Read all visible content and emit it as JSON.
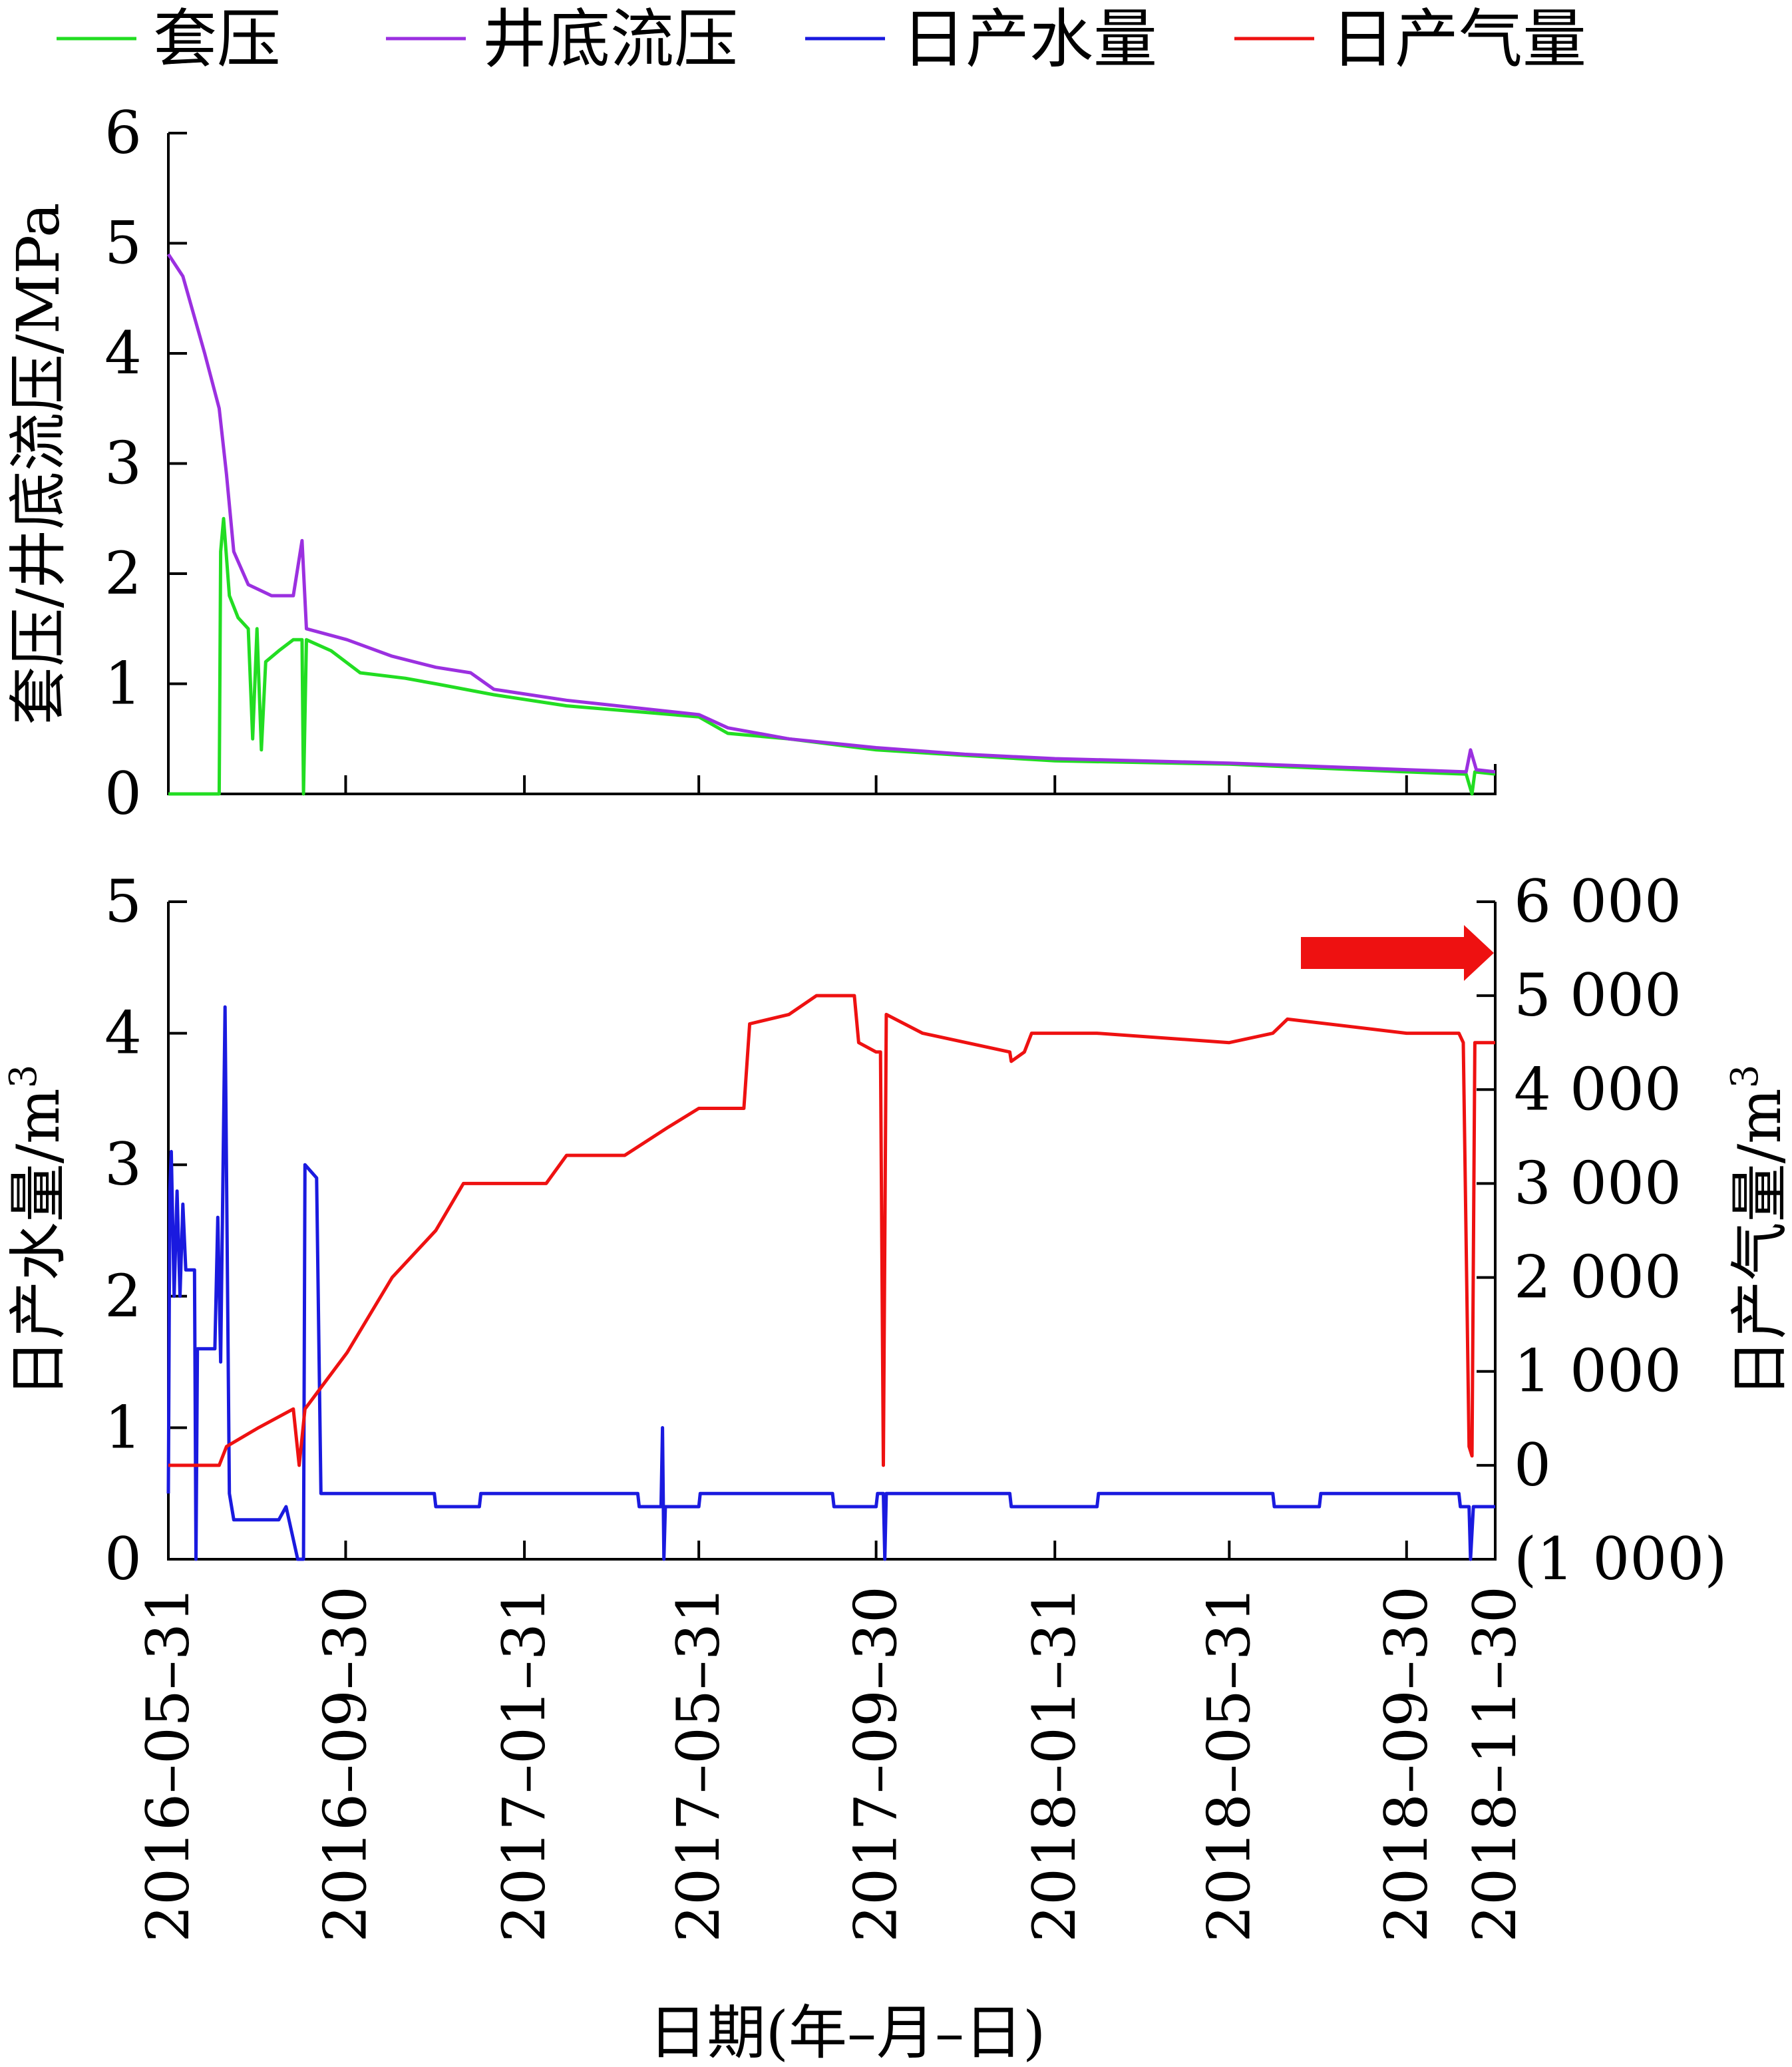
{
  "legend": [
    {
      "label": "套压",
      "color": "#22dd22"
    },
    {
      "label": "井底流压",
      "color": "#9b30e0"
    },
    {
      "label": "日产水量",
      "color": "#1a1adf"
    },
    {
      "label": "日产气量",
      "color": "#ee1111"
    }
  ],
  "chart_data": [
    {
      "type": "line",
      "panel": "top",
      "ylabel": "套压/井底流压/MPa",
      "ylim": [
        0,
        6
      ],
      "yticks": [
        "0",
        "1",
        "2",
        "3",
        "4",
        "5",
        "6"
      ],
      "xlim": [
        "2016-05-31",
        "2018-11-30"
      ],
      "series": [
        {
          "name": "套压",
          "color": "#22dd22",
          "points": [
            [
              "2016-05-31",
              0.0
            ],
            [
              "2016-07-05",
              0.0
            ],
            [
              "2016-07-06",
              2.2
            ],
            [
              "2016-07-08",
              2.5
            ],
            [
              "2016-07-12",
              1.8
            ],
            [
              "2016-07-18",
              1.6
            ],
            [
              "2016-07-25",
              1.5
            ],
            [
              "2016-07-28",
              0.5
            ],
            [
              "2016-07-31",
              1.5
            ],
            [
              "2016-08-03",
              0.4
            ],
            [
              "2016-08-06",
              1.2
            ],
            [
              "2016-08-15",
              1.3
            ],
            [
              "2016-08-25",
              1.4
            ],
            [
              "2016-08-31",
              1.4
            ],
            [
              "2016-09-01",
              0.0
            ],
            [
              "2016-09-03",
              1.4
            ],
            [
              "2016-09-20",
              1.3
            ],
            [
              "2016-10-10",
              1.1
            ],
            [
              "2016-11-10",
              1.05
            ],
            [
              "2016-12-01",
              1.0
            ],
            [
              "2017-01-10",
              0.9
            ],
            [
              "2017-03-01",
              0.8
            ],
            [
              "2017-05-31",
              0.7
            ],
            [
              "2017-06-20",
              0.55
            ],
            [
              "2017-08-01",
              0.5
            ],
            [
              "2017-09-30",
              0.4
            ],
            [
              "2017-11-30",
              0.35
            ],
            [
              "2018-01-31",
              0.3
            ],
            [
              "2018-05-31",
              0.27
            ],
            [
              "2018-09-30",
              0.2
            ],
            [
              "2018-11-10",
              0.18
            ],
            [
              "2018-11-14",
              0.0
            ],
            [
              "2018-11-16",
              0.2
            ],
            [
              "2018-11-30",
              0.18
            ]
          ]
        },
        {
          "name": "井底流压",
          "color": "#9b30e0",
          "points": [
            [
              "2016-05-31",
              4.9
            ],
            [
              "2016-06-10",
              4.7
            ],
            [
              "2016-06-25",
              4.0
            ],
            [
              "2016-07-05",
              3.5
            ],
            [
              "2016-07-10",
              2.9
            ],
            [
              "2016-07-15",
              2.2
            ],
            [
              "2016-07-25",
              1.9
            ],
            [
              "2016-08-10",
              1.8
            ],
            [
              "2016-08-25",
              1.8
            ],
            [
              "2016-08-31",
              2.3
            ],
            [
              "2016-09-03",
              1.5
            ],
            [
              "2016-10-01",
              1.4
            ],
            [
              "2016-11-01",
              1.25
            ],
            [
              "2016-12-01",
              1.15
            ],
            [
              "2016-12-25",
              1.1
            ],
            [
              "2017-01-10",
              0.95
            ],
            [
              "2017-03-01",
              0.85
            ],
            [
              "2017-05-31",
              0.72
            ],
            [
              "2017-06-20",
              0.6
            ],
            [
              "2017-08-01",
              0.5
            ],
            [
              "2017-09-30",
              0.42
            ],
            [
              "2017-11-30",
              0.36
            ],
            [
              "2018-01-31",
              0.32
            ],
            [
              "2018-05-31",
              0.28
            ],
            [
              "2018-09-30",
              0.22
            ],
            [
              "2018-11-10",
              0.2
            ],
            [
              "2018-11-13",
              0.4
            ],
            [
              "2018-11-17",
              0.22
            ],
            [
              "2018-11-30",
              0.2
            ]
          ]
        }
      ]
    },
    {
      "type": "line",
      "panel": "bottom",
      "ylabel": "日产水量/m",
      "ylabel_sup": "3",
      "ylim": [
        0,
        5
      ],
      "yticks": [
        "0",
        "1",
        "2",
        "3",
        "4",
        "5"
      ],
      "y2label": "日产气量/m",
      "y2label_sup": "3",
      "y2lim": [
        -1000,
        6000
      ],
      "y2ticks": [
        "(1 000)",
        "0",
        "1 000",
        "2 000",
        "3 000",
        "4 000",
        "5 000",
        "6 000"
      ],
      "xlabel": "日期(年–月–日)",
      "xlim": [
        "2016-05-31",
        "2018-11-30"
      ],
      "xticks": [
        "2016–05–31",
        "2016–09–30",
        "2017–01–31",
        "2017–05–31",
        "2017–09–30",
        "2018–01–31",
        "2018–05–31",
        "2018–09–30",
        "2018–11–30"
      ],
      "series": [
        {
          "name": "日产水量",
          "color": "#1a1adf",
          "axis": "left",
          "points": [
            [
              "2016-05-31",
              0.5
            ],
            [
              "2016-06-01",
              2.8
            ],
            [
              "2016-06-02",
              3.1
            ],
            [
              "2016-06-04",
              2.0
            ],
            [
              "2016-06-06",
              2.8
            ],
            [
              "2016-06-08",
              2.0
            ],
            [
              "2016-06-10",
              2.7
            ],
            [
              "2016-06-12",
              2.2
            ],
            [
              "2016-06-18",
              2.2
            ],
            [
              "2016-06-19",
              0.0
            ],
            [
              "2016-06-20",
              1.6
            ],
            [
              "2016-07-02",
              1.6
            ],
            [
              "2016-07-04",
              2.6
            ],
            [
              "2016-07-06",
              1.5
            ],
            [
              "2016-07-09",
              4.2
            ],
            [
              "2016-07-12",
              0.5
            ],
            [
              "2016-07-15",
              0.3
            ],
            [
              "2016-08-15",
              0.3
            ],
            [
              "2016-08-20",
              0.4
            ],
            [
              "2016-08-28",
              0.0
            ],
            [
              "2016-09-01",
              0.0
            ],
            [
              "2016-09-02",
              3.0
            ],
            [
              "2016-09-10",
              2.9
            ],
            [
              "2016-09-13",
              0.5
            ],
            [
              "2016-11-30",
              0.5
            ],
            [
              "2016-12-01",
              0.4
            ],
            [
              "2016-12-31",
              0.4
            ],
            [
              "2017-01-01",
              0.5
            ],
            [
              "2017-04-19",
              0.5
            ],
            [
              "2017-04-20",
              0.4
            ],
            [
              "2017-05-05",
              0.4
            ],
            [
              "2017-05-06",
              1.0
            ],
            [
              "2017-05-07",
              0.0
            ],
            [
              "2017-05-08",
              0.4
            ],
            [
              "2017-05-31",
              0.4
            ],
            [
              "2017-06-01",
              0.5
            ],
            [
              "2017-08-31",
              0.5
            ],
            [
              "2017-09-01",
              0.4
            ],
            [
              "2017-09-30",
              0.4
            ],
            [
              "2017-10-01",
              0.5
            ],
            [
              "2017-10-05",
              0.5
            ],
            [
              "2017-10-06",
              0.0
            ],
            [
              "2017-10-07",
              0.5
            ],
            [
              "2017-12-31",
              0.5
            ],
            [
              "2018-01-01",
              0.4
            ],
            [
              "2018-03-01",
              0.4
            ],
            [
              "2018-03-02",
              0.5
            ],
            [
              "2018-06-30",
              0.5
            ],
            [
              "2018-07-01",
              0.4
            ],
            [
              "2018-08-01",
              0.4
            ],
            [
              "2018-08-02",
              0.5
            ],
            [
              "2018-11-05",
              0.5
            ],
            [
              "2018-11-06",
              0.4
            ],
            [
              "2018-11-12",
              0.4
            ],
            [
              "2018-11-13",
              0.0
            ],
            [
              "2018-11-15",
              0.4
            ],
            [
              "2018-11-30",
              0.4
            ]
          ]
        },
        {
          "name": "日产气量",
          "color": "#ee1111",
          "axis": "right",
          "points": [
            [
              "2016-05-31",
              0
            ],
            [
              "2016-07-05",
              0
            ],
            [
              "2016-07-10",
              200
            ],
            [
              "2016-08-01",
              400
            ],
            [
              "2016-08-25",
              600
            ],
            [
              "2016-08-29",
              0
            ],
            [
              "2016-09-02",
              600
            ],
            [
              "2016-10-01",
              1200
            ],
            [
              "2016-11-01",
              2000
            ],
            [
              "2016-12-01",
              2500
            ],
            [
              "2016-12-20",
              3000
            ],
            [
              "2017-01-31",
              3000
            ],
            [
              "2017-02-15",
              3000
            ],
            [
              "2017-03-01",
              3300
            ],
            [
              "2017-04-10",
              3300
            ],
            [
              "2017-05-10",
              3600
            ],
            [
              "2017-05-31",
              3800
            ],
            [
              "2017-06-25",
              3800
            ],
            [
              "2017-07-01",
              3800
            ],
            [
              "2017-07-05",
              4700
            ],
            [
              "2017-08-01",
              4800
            ],
            [
              "2017-08-20",
              5000
            ],
            [
              "2017-09-15",
              5000
            ],
            [
              "2017-09-18",
              4500
            ],
            [
              "2017-09-30",
              4400
            ],
            [
              "2017-10-03",
              4400
            ],
            [
              "2017-10-05",
              0
            ],
            [
              "2017-10-07",
              4800
            ],
            [
              "2017-11-01",
              4600
            ],
            [
              "2017-12-31",
              4400
            ],
            [
              "2018-01-01",
              4300
            ],
            [
              "2018-01-10",
              4400
            ],
            [
              "2018-01-15",
              4600
            ],
            [
              "2018-03-01",
              4600
            ],
            [
              "2018-05-31",
              4500
            ],
            [
              "2018-06-30",
              4600
            ],
            [
              "2018-07-10",
              4750
            ],
            [
              "2018-09-30",
              4600
            ],
            [
              "2018-11-05",
              4600
            ],
            [
              "2018-11-08",
              4500
            ],
            [
              "2018-11-12",
              200
            ],
            [
              "2018-11-14",
              100
            ],
            [
              "2018-11-16",
              4500
            ],
            [
              "2018-11-30",
              4500
            ]
          ]
        }
      ]
    }
  ]
}
